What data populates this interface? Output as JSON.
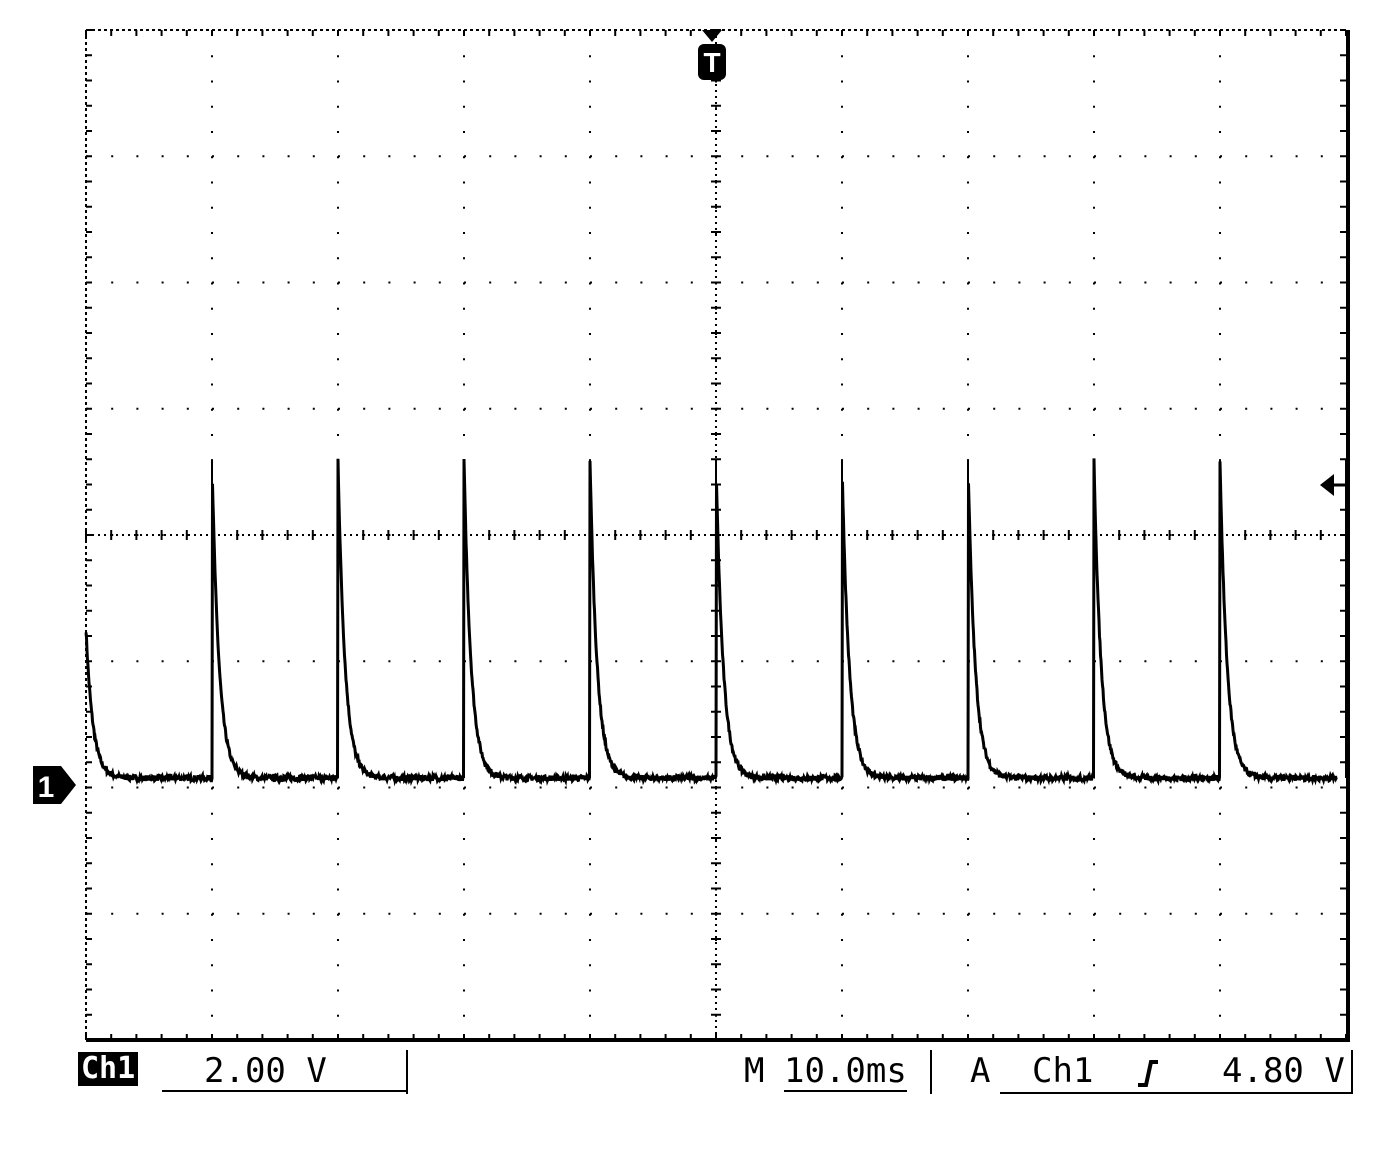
{
  "chart_data": {
    "type": "line",
    "instrument": "oscilloscope",
    "grid": true,
    "x_divisions": 10,
    "y_divisions": 8,
    "time_per_div_ms": 10,
    "volts_per_div": 2,
    "channel_ground_offset_div": -2,
    "trigger_level_v": 4.8,
    "series": [
      {
        "pulse_period_ms": 10,
        "first_full_pulse_ms": 10,
        "pulse_count": 10,
        "pulse_peak_v": 5.2,
        "baseline_v": 0.15,
        "decay_time_constant_ms": 0.55,
        "partial_pulse_at_start_peak_v": 2.5
      }
    ],
    "ylim": [
      -4,
      12
    ],
    "xlim_ms": [
      0,
      100
    ]
  },
  "markers": {
    "trigger_marker": "T",
    "channel_marker": "1",
    "trigger_level_icon": "left-arrow-icon"
  },
  "status_bar": {
    "channel_label": "Ch1",
    "volts_div": "2.00 V",
    "timebase_prefix": "M",
    "timebase": "10.0ms",
    "trigger_mode": "A",
    "trigger_source": "Ch1",
    "trigger_slope_icon": "rising-edge-icon",
    "trigger_level": "4.80 V"
  }
}
